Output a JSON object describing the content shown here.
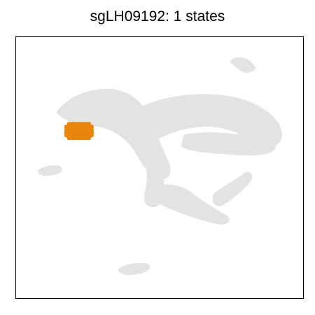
{
  "chart_data": {
    "type": "scatter",
    "title": "sgLH09192: 1 states",
    "xlabel": "",
    "ylabel": "",
    "axes_ticks": false,
    "grid": false,
    "legend": "none",
    "background_color": "#e3e3e3",
    "series": [
      {
        "highlight_color": "#e8850c",
        "values": [
          {
            "x": 0.22,
            "y": 0.64
          }
        ]
      }
    ]
  }
}
